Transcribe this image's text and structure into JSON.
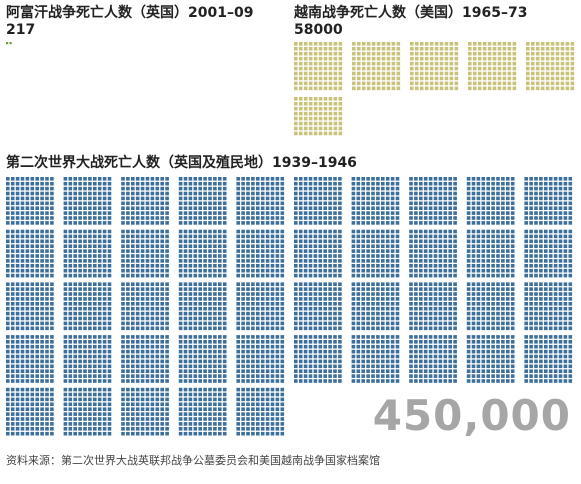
{
  "chart_data": [
    {
      "type": "unit",
      "title": "阿富汗战争死亡人数（英国）2001–09",
      "value": 217,
      "value_label": "217",
      "color": "#6e9a3c"
    },
    {
      "type": "unit",
      "title": "越南战争死亡人数（美国）1965–73",
      "value": 58000,
      "value_label": "58000",
      "color": "#c8c27a"
    },
    {
      "type": "unit",
      "title": "第二次世界大战死亡人数（英国及殖民地）1939–1946",
      "value": 450000,
      "value_label": "450,000",
      "color": "#3c6f9a"
    }
  ],
  "source": "资料来源：第二次世界大战英联邦战争公墓委员会和美国越南战争国家档案馆"
}
